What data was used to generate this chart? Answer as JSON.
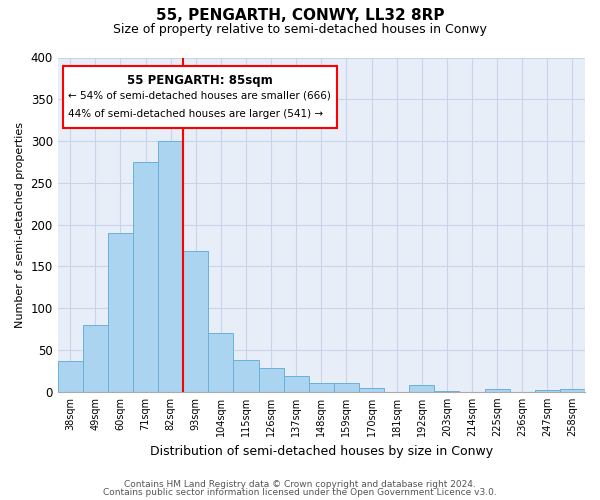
{
  "title": "55, PENGARTH, CONWY, LL32 8RP",
  "subtitle": "Size of property relative to semi-detached houses in Conwy",
  "xlabel": "Distribution of semi-detached houses by size in Conwy",
  "ylabel": "Number of semi-detached properties",
  "bar_labels": [
    "38sqm",
    "49sqm",
    "60sqm",
    "71sqm",
    "82sqm",
    "93sqm",
    "104sqm",
    "115sqm",
    "126sqm",
    "137sqm",
    "148sqm",
    "159sqm",
    "170sqm",
    "181sqm",
    "192sqm",
    "203sqm",
    "214sqm",
    "225sqm",
    "236sqm",
    "247sqm",
    "258sqm"
  ],
  "bar_values": [
    37,
    80,
    190,
    275,
    300,
    168,
    70,
    38,
    28,
    19,
    10,
    10,
    5,
    0,
    8,
    1,
    0,
    3,
    0,
    2,
    3
  ],
  "bar_color": "#aad4f0",
  "bar_edge_color": "#6ab0dc",
  "redline_x": 5.0,
  "annotation_title": "55 PENGARTH: 85sqm",
  "annotation_line1": "← 54% of semi-detached houses are smaller (666)",
  "annotation_line2": "44% of semi-detached houses are larger (541) →",
  "ylim": [
    0,
    400
  ],
  "yticks": [
    0,
    50,
    100,
    150,
    200,
    250,
    300,
    350,
    400
  ],
  "footnote1": "Contains HM Land Registry data © Crown copyright and database right 2024.",
  "footnote2": "Contains public sector information licensed under the Open Government Licence v3.0.",
  "background_color": "#ffffff",
  "plot_bg_color": "#e8eef8",
  "grid_color": "#c8d4e8"
}
